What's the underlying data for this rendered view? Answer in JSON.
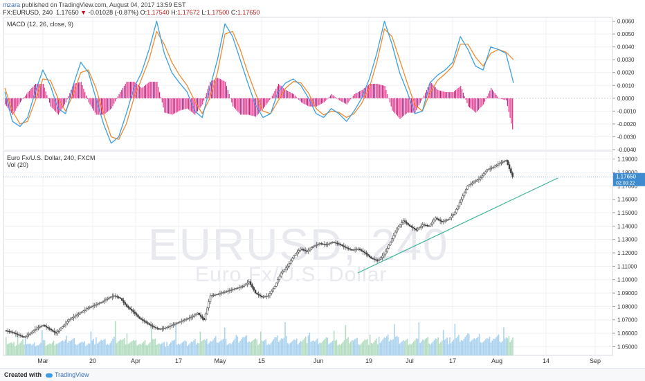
{
  "header": {
    "author": "mzara",
    "published_text": "published on TradingView.com, August 04, 2017 13:59 EST",
    "symbol_line": "FX:EURUSD, 240",
    "last": "1.17650",
    "change": "-0.01028 (-0.87%)",
    "o_label": "O:",
    "o_value": "1.17540",
    "h_label": "H:",
    "h_value": "1.17672",
    "l_label": "L:",
    "l_value": "1.17500",
    "c_label": "C:",
    "c_value": "1.17650"
  },
  "macd_pane": {
    "title": "MACD (12, 26, close, 9)"
  },
  "price_pane": {
    "title": "Euro Fx/U.S. Dollar, 240, FXCM",
    "vol_label": "Vol (20)"
  },
  "watermark": {
    "symbol": "EURUSD, 240",
    "name": "Euro Fx/U.S. Dollar"
  },
  "price_tag": {
    "value": "1.17650",
    "countdown": "02:00:22"
  },
  "footer": {
    "created_with": "Created with",
    "brand": "TradingView"
  },
  "colors": {
    "macd_line": "#3a9ee0",
    "signal_line": "#f08a2c",
    "histogram": "#e0197d",
    "candle": "#3c3c3c",
    "trendline": "#3cb39a",
    "volume_up": "#8fc4ea",
    "volume_down": "#9bd1ad",
    "price_tag": "#3f8bd0"
  },
  "chart_data": [
    {
      "type": "line",
      "name": "MACD",
      "x_ticks": [
        "Mar",
        "20",
        "Apr",
        "17",
        "May",
        "15",
        "Jun",
        "19",
        "Jul",
        "17",
        "Aug",
        "14",
        "Sep"
      ],
      "y_ticks": [
        "0.0060",
        "0.0050",
        "0.0040",
        "0.0030",
        "0.0020",
        "0.0010",
        "0.0000",
        "-0.0010",
        "-0.0020",
        "-0.0030",
        "-0.0040"
      ],
      "ylim": [
        -0.004,
        0.0063
      ],
      "series": [
        {
          "name": "MACD",
          "values": [
            0.0005,
            -0.0018,
            -0.0022,
            -0.0015,
            0.0005,
            0.0022,
            0.001,
            -0.0008,
            -0.0012,
            0.001,
            0.0028,
            0.002,
            0.0,
            -0.002,
            -0.0035,
            -0.003,
            -0.0012,
            0.0008,
            0.002,
            0.0038,
            0.006,
            0.0035,
            0.002,
            0.0012,
            0.0005,
            -0.001,
            -0.0015,
            0.0008,
            0.003,
            0.0058,
            0.0048,
            0.003,
            0.0012,
            -0.0005,
            -0.0015,
            -0.0012,
            0.0005,
            0.0012,
            0.0015,
            0.001,
            0.0,
            -0.0012,
            -0.0015,
            -0.0008,
            -0.0012,
            -0.0018,
            -0.001,
            0.0,
            0.0015,
            0.0035,
            0.006,
            0.0042,
            0.002,
            0.0005,
            -0.0012,
            -0.001,
            0.0012,
            0.0018,
            0.0022,
            0.0028,
            0.0048,
            0.0038,
            0.0025,
            0.0022,
            0.004,
            0.0038,
            0.0035,
            0.0012
          ]
        },
        {
          "name": "Signal",
          "values": [
            0.0008,
            -0.001,
            -0.002,
            -0.0018,
            -0.0002,
            0.0015,
            0.0014,
            0.0,
            -0.001,
            0.0003,
            0.002,
            0.0022,
            0.0008,
            -0.0012,
            -0.003,
            -0.0032,
            -0.002,
            0.0,
            0.0015,
            0.003,
            0.0052,
            0.0042,
            0.0028,
            0.0018,
            0.001,
            -0.0002,
            -0.0012,
            0.0,
            0.002,
            0.005,
            0.0052,
            0.0038,
            0.002,
            0.0004,
            -0.001,
            -0.0012,
            -0.0002,
            0.0008,
            0.0013,
            0.0012,
            0.0004,
            -0.0008,
            -0.0013,
            -0.001,
            -0.0011,
            -0.0015,
            -0.0012,
            -0.0004,
            0.0008,
            0.0028,
            0.0054,
            0.0048,
            0.003,
            0.0012,
            -0.0005,
            -0.001,
            0.0004,
            0.0014,
            0.0019,
            0.0025,
            0.0042,
            0.0042,
            0.0032,
            0.0025,
            0.0035,
            0.0038,
            0.0036,
            0.003
          ]
        }
      ]
    },
    {
      "type": "candlestick",
      "name": "EURUSD 240",
      "y_ticks": [
        "1.19000",
        "1.18000",
        "1.17000",
        "1.16000",
        "1.15000",
        "1.14000",
        "1.13000",
        "1.12000",
        "1.11000",
        "1.10000",
        "1.09000",
        "1.08000",
        "1.07000",
        "1.06000",
        "1.05000"
      ],
      "ylim": [
        1.0435,
        1.196
      ],
      "close": [
        1.062,
        1.061,
        1.059,
        1.057,
        1.06,
        1.064,
        1.066,
        1.063,
        1.06,
        1.065,
        1.07,
        1.073,
        1.076,
        1.079,
        1.081,
        1.083,
        1.086,
        1.088,
        1.086,
        1.08,
        1.076,
        1.071,
        1.068,
        1.065,
        1.063,
        1.064,
        1.066,
        1.068,
        1.07,
        1.072,
        1.075,
        1.07,
        1.088,
        1.089,
        1.0905,
        1.092,
        1.0935,
        1.095,
        1.0985,
        1.09,
        1.087,
        1.088,
        1.095,
        1.105,
        1.11,
        1.118,
        1.123,
        1.121,
        1.125,
        1.127,
        1.126,
        1.128,
        1.1265,
        1.124,
        1.122,
        1.123,
        1.12,
        1.116,
        1.114,
        1.119,
        1.128,
        1.138,
        1.144,
        1.14,
        1.137,
        1.141,
        1.14,
        1.146,
        1.143,
        1.145,
        1.15,
        1.16,
        1.17,
        1.173,
        1.176,
        1.182,
        1.184,
        1.187,
        1.189,
        1.1765
      ],
      "volume_relative": [
        0.55,
        0.45,
        0.5,
        0.6,
        0.4,
        0.48,
        0.52,
        0.46,
        0.58,
        0.5,
        0.62,
        0.55,
        0.48,
        0.53,
        0.6,
        0.58,
        0.5,
        0.66,
        0.62,
        0.57,
        0.52,
        0.47,
        0.54,
        0.6,
        0.5,
        0.45,
        0.58,
        0.52,
        0.49,
        0.55,
        0.61,
        0.54,
        0.6,
        0.67,
        0.58,
        0.52,
        0.63,
        0.7,
        0.62,
        0.55,
        0.58,
        0.54,
        0.65,
        0.71,
        0.6,
        0.57,
        0.63,
        0.66,
        0.54,
        0.59,
        0.61,
        0.56,
        0.52,
        0.6,
        0.64,
        0.55,
        0.58,
        0.53,
        0.62,
        0.68,
        0.72,
        0.63,
        0.59,
        0.55,
        0.6,
        0.66,
        0.58,
        0.62,
        0.64,
        0.6,
        0.67,
        0.7,
        0.74,
        0.66,
        0.62,
        0.6,
        0.71,
        0.69,
        0.64,
        0.8
      ]
    }
  ]
}
